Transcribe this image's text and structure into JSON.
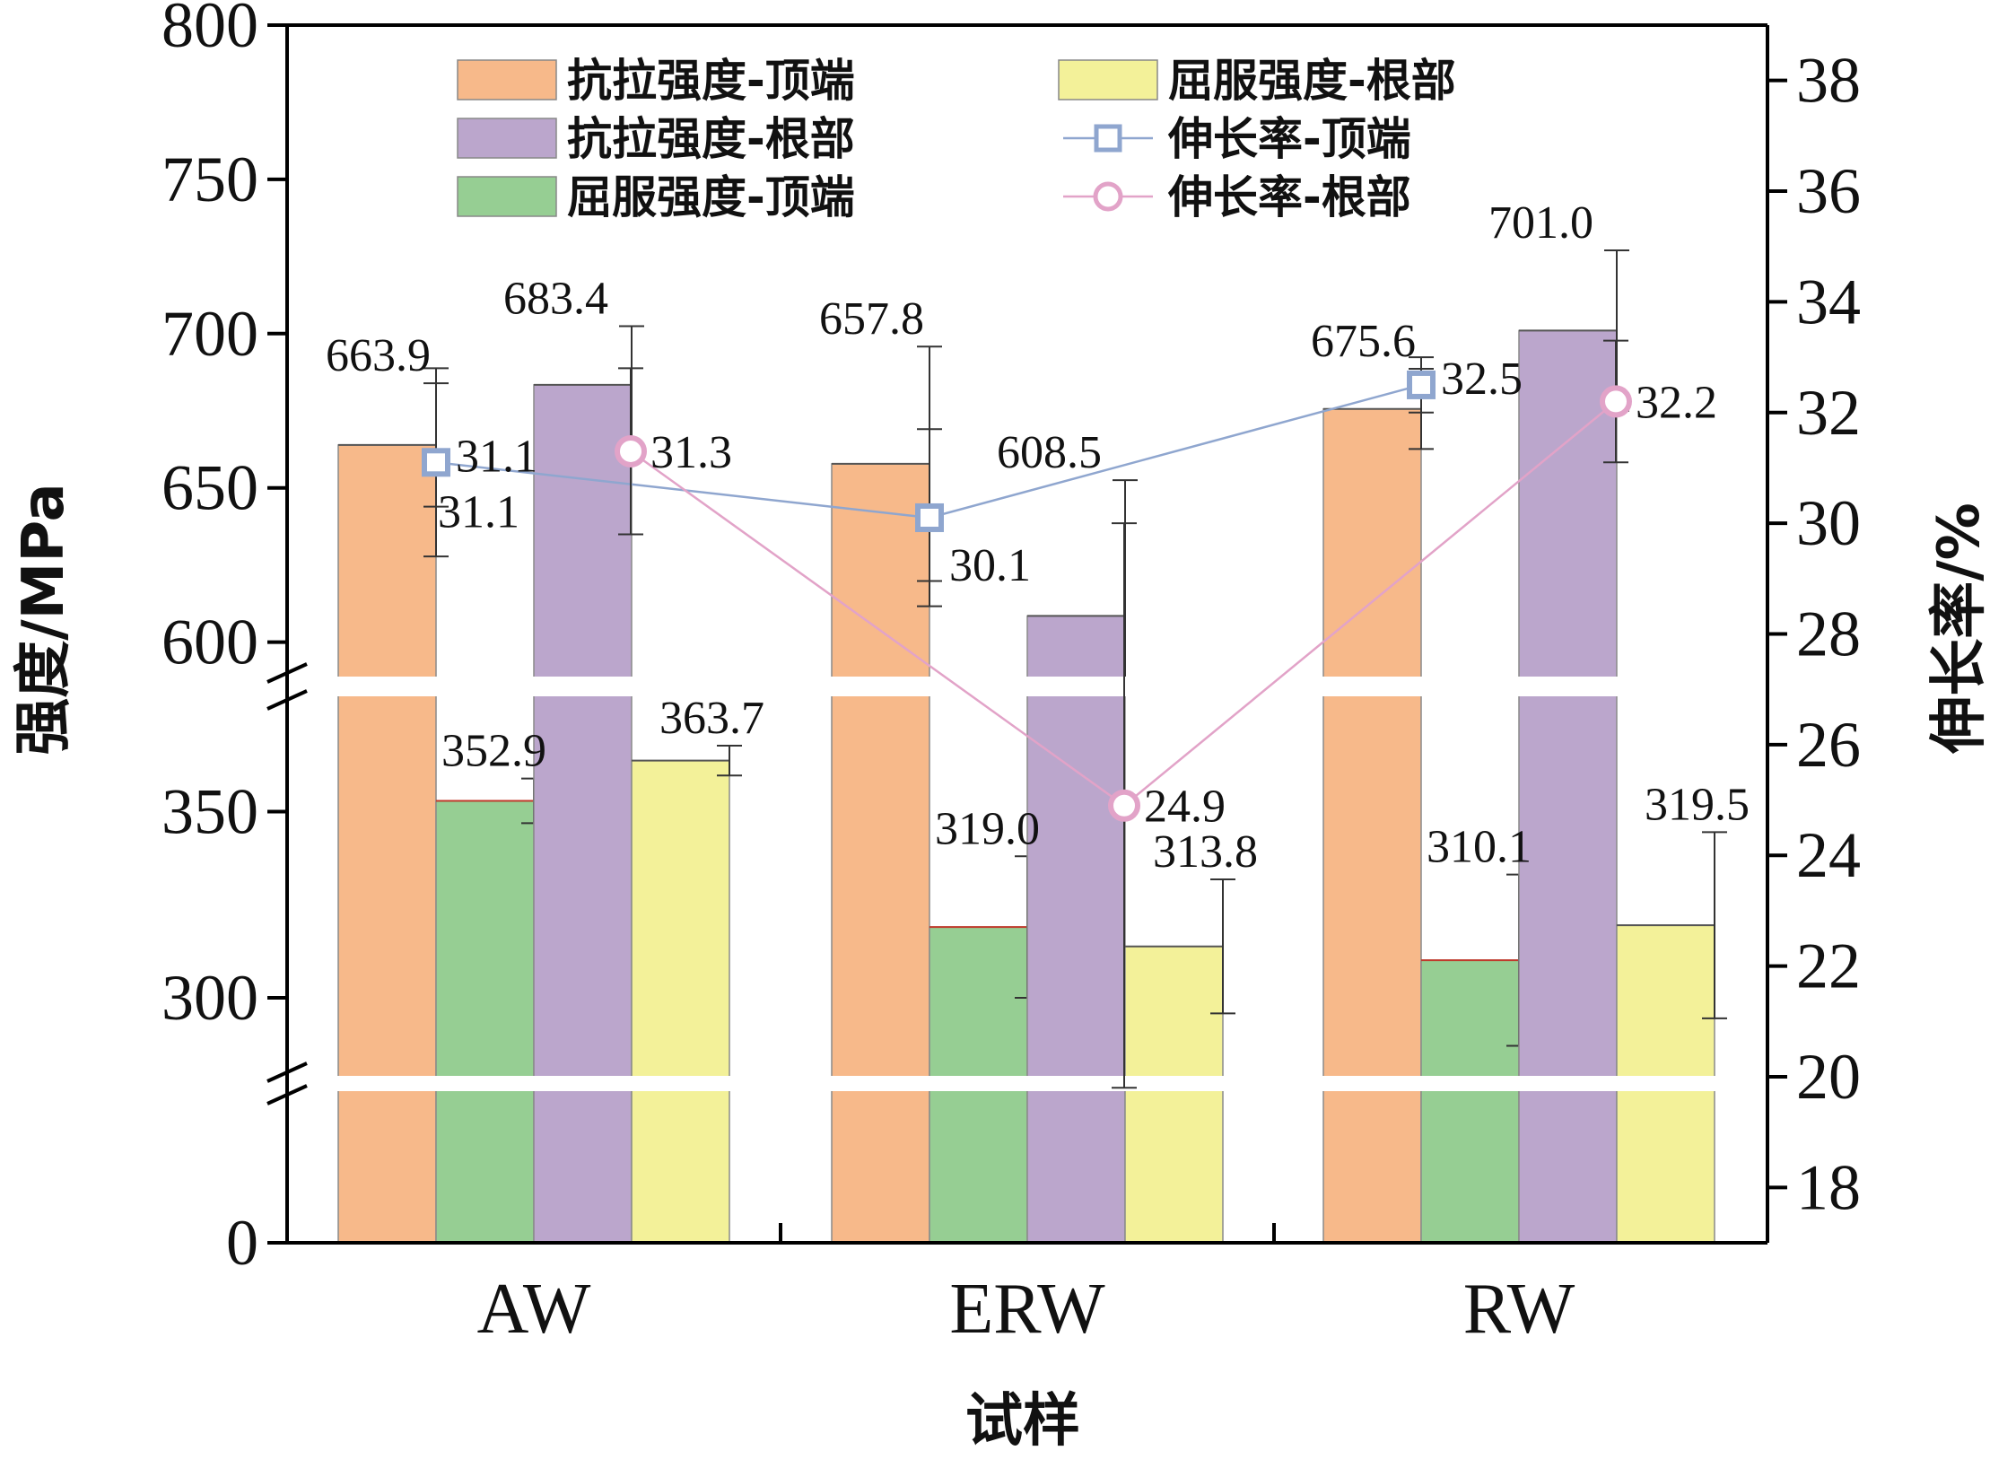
{
  "chart_data": {
    "type": "bar",
    "categories": [
      "AW",
      "ERW",
      "RW"
    ],
    "xlabel": "试样",
    "ylabel": "强度/MPa",
    "y2label": "伸长率/%",
    "y_axis": {
      "segments": [
        [
          0,
          280
        ],
        [
          280,
          380
        ],
        [
          590,
          800
        ]
      ],
      "ticks": [
        0,
        300,
        350,
        600,
        650,
        700,
        750,
        800
      ]
    },
    "y2_axis": {
      "range": [
        17,
        39
      ],
      "ticks": [
        18,
        20,
        22,
        24,
        26,
        28,
        30,
        32,
        34,
        36,
        38
      ]
    },
    "legend_position": "top",
    "series": [
      {
        "name": "抗拉强度-顶端",
        "kind": "bar",
        "color": "#F7B98A",
        "values": [
          663.9,
          657.8,
          675.6
        ],
        "errors": [
          20,
          38,
          13
        ],
        "labels": [
          "663.9",
          "657.8",
          "675.6"
        ]
      },
      {
        "name": "屈服强度-顶端",
        "kind": "bar",
        "color": "#96CE93",
        "values": [
          352.9,
          319.0,
          310.1
        ],
        "errors": [
          6,
          19,
          23
        ],
        "labels": [
          "352.9",
          "319.0",
          "310.1"
        ]
      },
      {
        "name": "抗拉强度-根部",
        "kind": "bar",
        "color": "#BBA6CC",
        "values": [
          683.4,
          608.5,
          701.0
        ],
        "errors": [
          19,
          44,
          26
        ],
        "labels": [
          "683.4",
          "608.5",
          "701.0"
        ]
      },
      {
        "name": "屈服强度-根部",
        "kind": "bar",
        "color": "#F3F199",
        "values": [
          363.7,
          313.8,
          319.5
        ],
        "errors": [
          4,
          18,
          25
        ],
        "labels": [
          "363.7",
          "313.8",
          "319.5"
        ]
      },
      {
        "name": "伸长率-顶端",
        "kind": "line",
        "marker": "square",
        "color": "#8FA6CF",
        "values": [
          31.1,
          30.1,
          32.5
        ],
        "errors": [
          1.7,
          1.6,
          0.5
        ],
        "labels": [
          "31.1",
          "30.1",
          "32.5"
        ]
      },
      {
        "name": "伸长率-根部",
        "kind": "line",
        "marker": "circle",
        "color": "#E2A3C8",
        "values": [
          31.3,
          24.9,
          32.2
        ],
        "errors": [
          1.5,
          5.1,
          1.1
        ],
        "labels": [
          "31.3",
          "24.9",
          "32.2"
        ]
      }
    ]
  }
}
